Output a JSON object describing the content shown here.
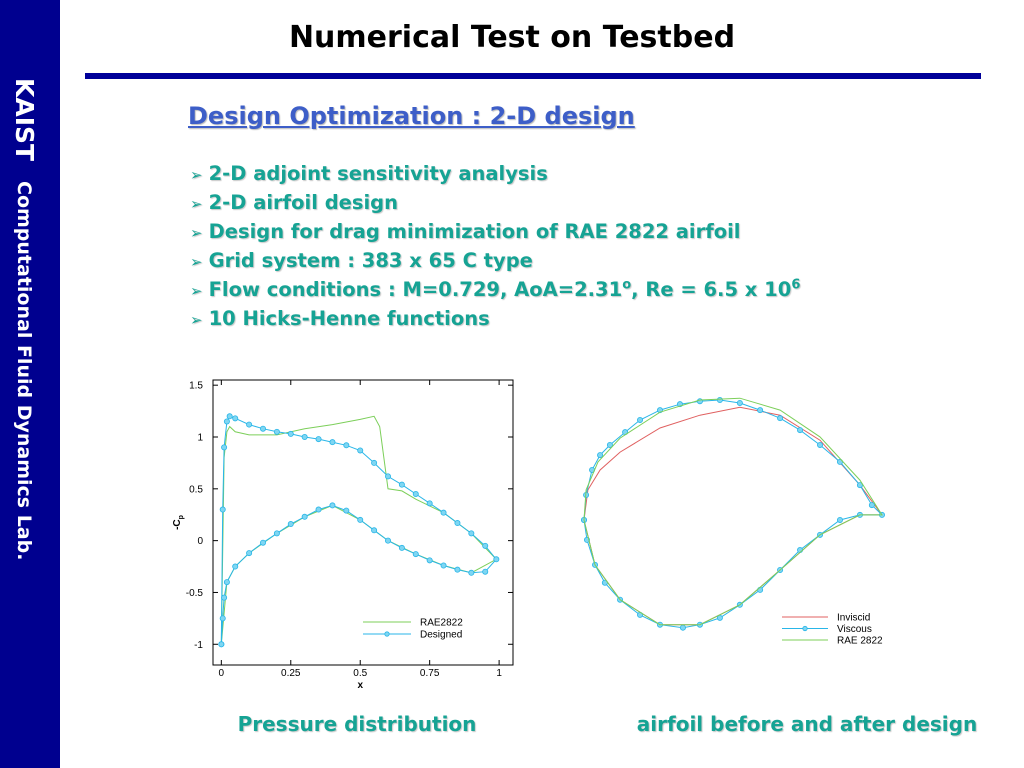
{
  "sidebar": {
    "title": "KAIST",
    "subtitle": "Computational Fluid Dynamics Lab."
  },
  "header": {
    "title": "Numerical Test on Testbed"
  },
  "section": {
    "title": "Design Optimization : 2-D design"
  },
  "bullets": [
    "2-D adjoint sensitivity analysis",
    "2-D airfoil design",
    "Design for drag minimization of RAE 2822 airfoil",
    "Grid system : 383 x 65 C type",
    [
      "Flow conditions : M=0.729, AoA=2.31",
      "o",
      ", Re = 6.5 x 10",
      "6"
    ],
    "10 Hicks-Henne functions"
  ],
  "captions": [
    "Pressure distribution",
    "airfoil before and after design"
  ],
  "chart_data": [
    {
      "type": "line",
      "x_label": "x",
      "y_label": "-C",
      "y_label_sub": "p",
      "xlim": [
        -0.03,
        1.05
      ],
      "ylim": [
        -1.2,
        1.55
      ],
      "xticks": [
        0,
        0.25,
        0.5,
        0.75,
        1
      ],
      "yticks": [
        1.5,
        1,
        0.5,
        0,
        -0.5,
        -1
      ],
      "axes": true,
      "legend": "lower right",
      "series": [
        {
          "name": "RAE2822",
          "color": "#7ccf5a",
          "marker": false,
          "x": [
            0,
            0.01,
            0.02,
            0.03,
            0.05,
            0.1,
            0.2,
            0.3,
            0.4,
            0.5,
            0.55,
            0.57,
            0.6,
            0.65,
            0.7,
            0.8,
            0.9,
            0.99,
            0.9,
            0.8,
            0.7,
            0.6,
            0.5,
            0.4,
            0.3,
            0.2,
            0.1,
            0.05,
            0.02,
            0
          ],
          "values": [
            -1.0,
            0.8,
            1.05,
            1.1,
            1.05,
            1.02,
            1.02,
            1.08,
            1.12,
            1.17,
            1.2,
            1.1,
            0.5,
            0.48,
            0.4,
            0.27,
            0.07,
            -0.18,
            -0.31,
            -0.24,
            -0.13,
            0.0,
            0.2,
            0.34,
            0.23,
            0.07,
            -0.12,
            -0.25,
            -0.4,
            -1.0
          ]
        },
        {
          "name": "Designed",
          "color": "#29b6e8",
          "marker": true,
          "x": [
            0,
            0.005,
            0.01,
            0.02,
            0.03,
            0.05,
            0.1,
            0.15,
            0.2,
            0.25,
            0.3,
            0.35,
            0.4,
            0.45,
            0.5,
            0.55,
            0.6,
            0.65,
            0.7,
            0.75,
            0.8,
            0.85,
            0.9,
            0.95,
            0.99,
            0.95,
            0.9,
            0.85,
            0.8,
            0.75,
            0.7,
            0.65,
            0.6,
            0.55,
            0.5,
            0.45,
            0.4,
            0.35,
            0.3,
            0.25,
            0.2,
            0.15,
            0.1,
            0.05,
            0.02,
            0.01,
            0.005,
            0
          ],
          "values": [
            -1.0,
            0.3,
            0.9,
            1.15,
            1.2,
            1.18,
            1.12,
            1.08,
            1.05,
            1.03,
            1.0,
            0.98,
            0.95,
            0.92,
            0.87,
            0.75,
            0.62,
            0.54,
            0.45,
            0.36,
            0.27,
            0.17,
            0.07,
            -0.05,
            -0.18,
            -0.3,
            -0.31,
            -0.28,
            -0.24,
            -0.19,
            -0.13,
            -0.07,
            0.0,
            0.1,
            0.2,
            0.29,
            0.34,
            0.3,
            0.23,
            0.16,
            0.07,
            -0.02,
            -0.12,
            -0.25,
            -0.4,
            -0.55,
            -0.75,
            -1.0
          ]
        }
      ]
    },
    {
      "type": "line",
      "xlim": [
        0,
        1
      ],
      "ylim": [
        -0.4,
        0.44
      ],
      "axes": false,
      "legend": "lower right",
      "series": [
        {
          "name": "Inviscid",
          "color": "#e06060",
          "marker": false,
          "x": [
            0,
            0.013,
            0.054,
            0.121,
            0.255,
            0.389,
            0.523,
            0.658,
            0.792,
            0.926,
            1,
            0.926,
            0.792,
            0.658,
            0.523,
            0.389,
            0.255,
            0.121,
            0.037,
            0
          ],
          "values": [
            0,
            0.101,
            0.168,
            0.228,
            0.309,
            0.352,
            0.379,
            0.352,
            0.268,
            0.117,
            0.017,
            0.017,
            -0.05,
            -0.168,
            -0.285,
            -0.352,
            -0.352,
            -0.268,
            -0.151,
            0
          ]
        },
        {
          "name": "Viscous",
          "color": "#29b6e8",
          "marker": true,
          "x": [
            0,
            0.007,
            0.027,
            0.054,
            0.087,
            0.138,
            0.188,
            0.255,
            0.322,
            0.389,
            0.456,
            0.523,
            0.591,
            0.658,
            0.725,
            0.792,
            0.859,
            0.926,
            0.966,
            1,
            0.926,
            0.859,
            0.792,
            0.725,
            0.658,
            0.591,
            0.523,
            0.456,
            0.389,
            0.332,
            0.255,
            0.188,
            0.121,
            0.07,
            0.037,
            0.01,
            0
          ],
          "values": [
            0,
            0.084,
            0.168,
            0.218,
            0.252,
            0.295,
            0.336,
            0.369,
            0.389,
            0.399,
            0.403,
            0.393,
            0.369,
            0.342,
            0.302,
            0.252,
            0.195,
            0.117,
            0.05,
            0.017,
            0.017,
            0,
            -0.05,
            -0.101,
            -0.168,
            -0.235,
            -0.285,
            -0.329,
            -0.352,
            -0.362,
            -0.352,
            -0.319,
            -0.268,
            -0.211,
            -0.151,
            -0.067,
            0
          ]
        },
        {
          "name": "RAE 2822",
          "color": "#7ccf5a",
          "marker": false,
          "x": [
            0,
            0.007,
            0.047,
            0.121,
            0.255,
            0.389,
            0.523,
            0.658,
            0.792,
            0.926,
            1,
            0.926,
            0.792,
            0.658,
            0.523,
            0.389,
            0.255,
            0.121,
            0.037,
            0
          ],
          "values": [
            0,
            0.101,
            0.195,
            0.275,
            0.362,
            0.403,
            0.409,
            0.369,
            0.279,
            0.134,
            0.017,
            0.017,
            -0.05,
            -0.168,
            -0.285,
            -0.352,
            -0.352,
            -0.268,
            -0.151,
            0
          ]
        }
      ]
    }
  ]
}
